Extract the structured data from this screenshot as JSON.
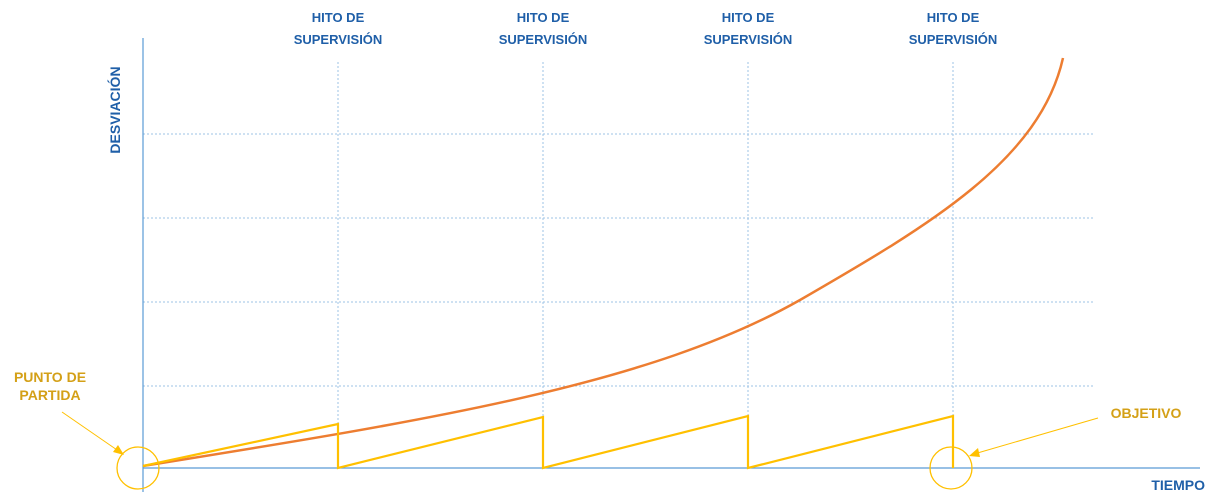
{
  "colors": {
    "axis": "#5b9bd5",
    "grid": "#9dc3e6",
    "label_blue": "#1f5fa8",
    "curve_orange": "#ed7d31",
    "control_yellow": "#ffc000",
    "annotation_gold": "#d4a017"
  },
  "milestones": [
    {
      "line1": "HITO DE",
      "line2": "SUPERVISIÓN"
    },
    {
      "line1": "HITO DE",
      "line2": "SUPERVISIÓN"
    },
    {
      "line1": "HITO DE",
      "line2": "SUPERVISIÓN"
    },
    {
      "line1": "HITO DE",
      "line2": "SUPERVISIÓN"
    }
  ],
  "axes": {
    "y_label": "DESVIACIÓN",
    "x_label": "TIEMPO"
  },
  "annotations": {
    "start_line1": "PUNTO DE",
    "start_line2": "PARTIDA",
    "goal": "OBJETIVO"
  }
}
